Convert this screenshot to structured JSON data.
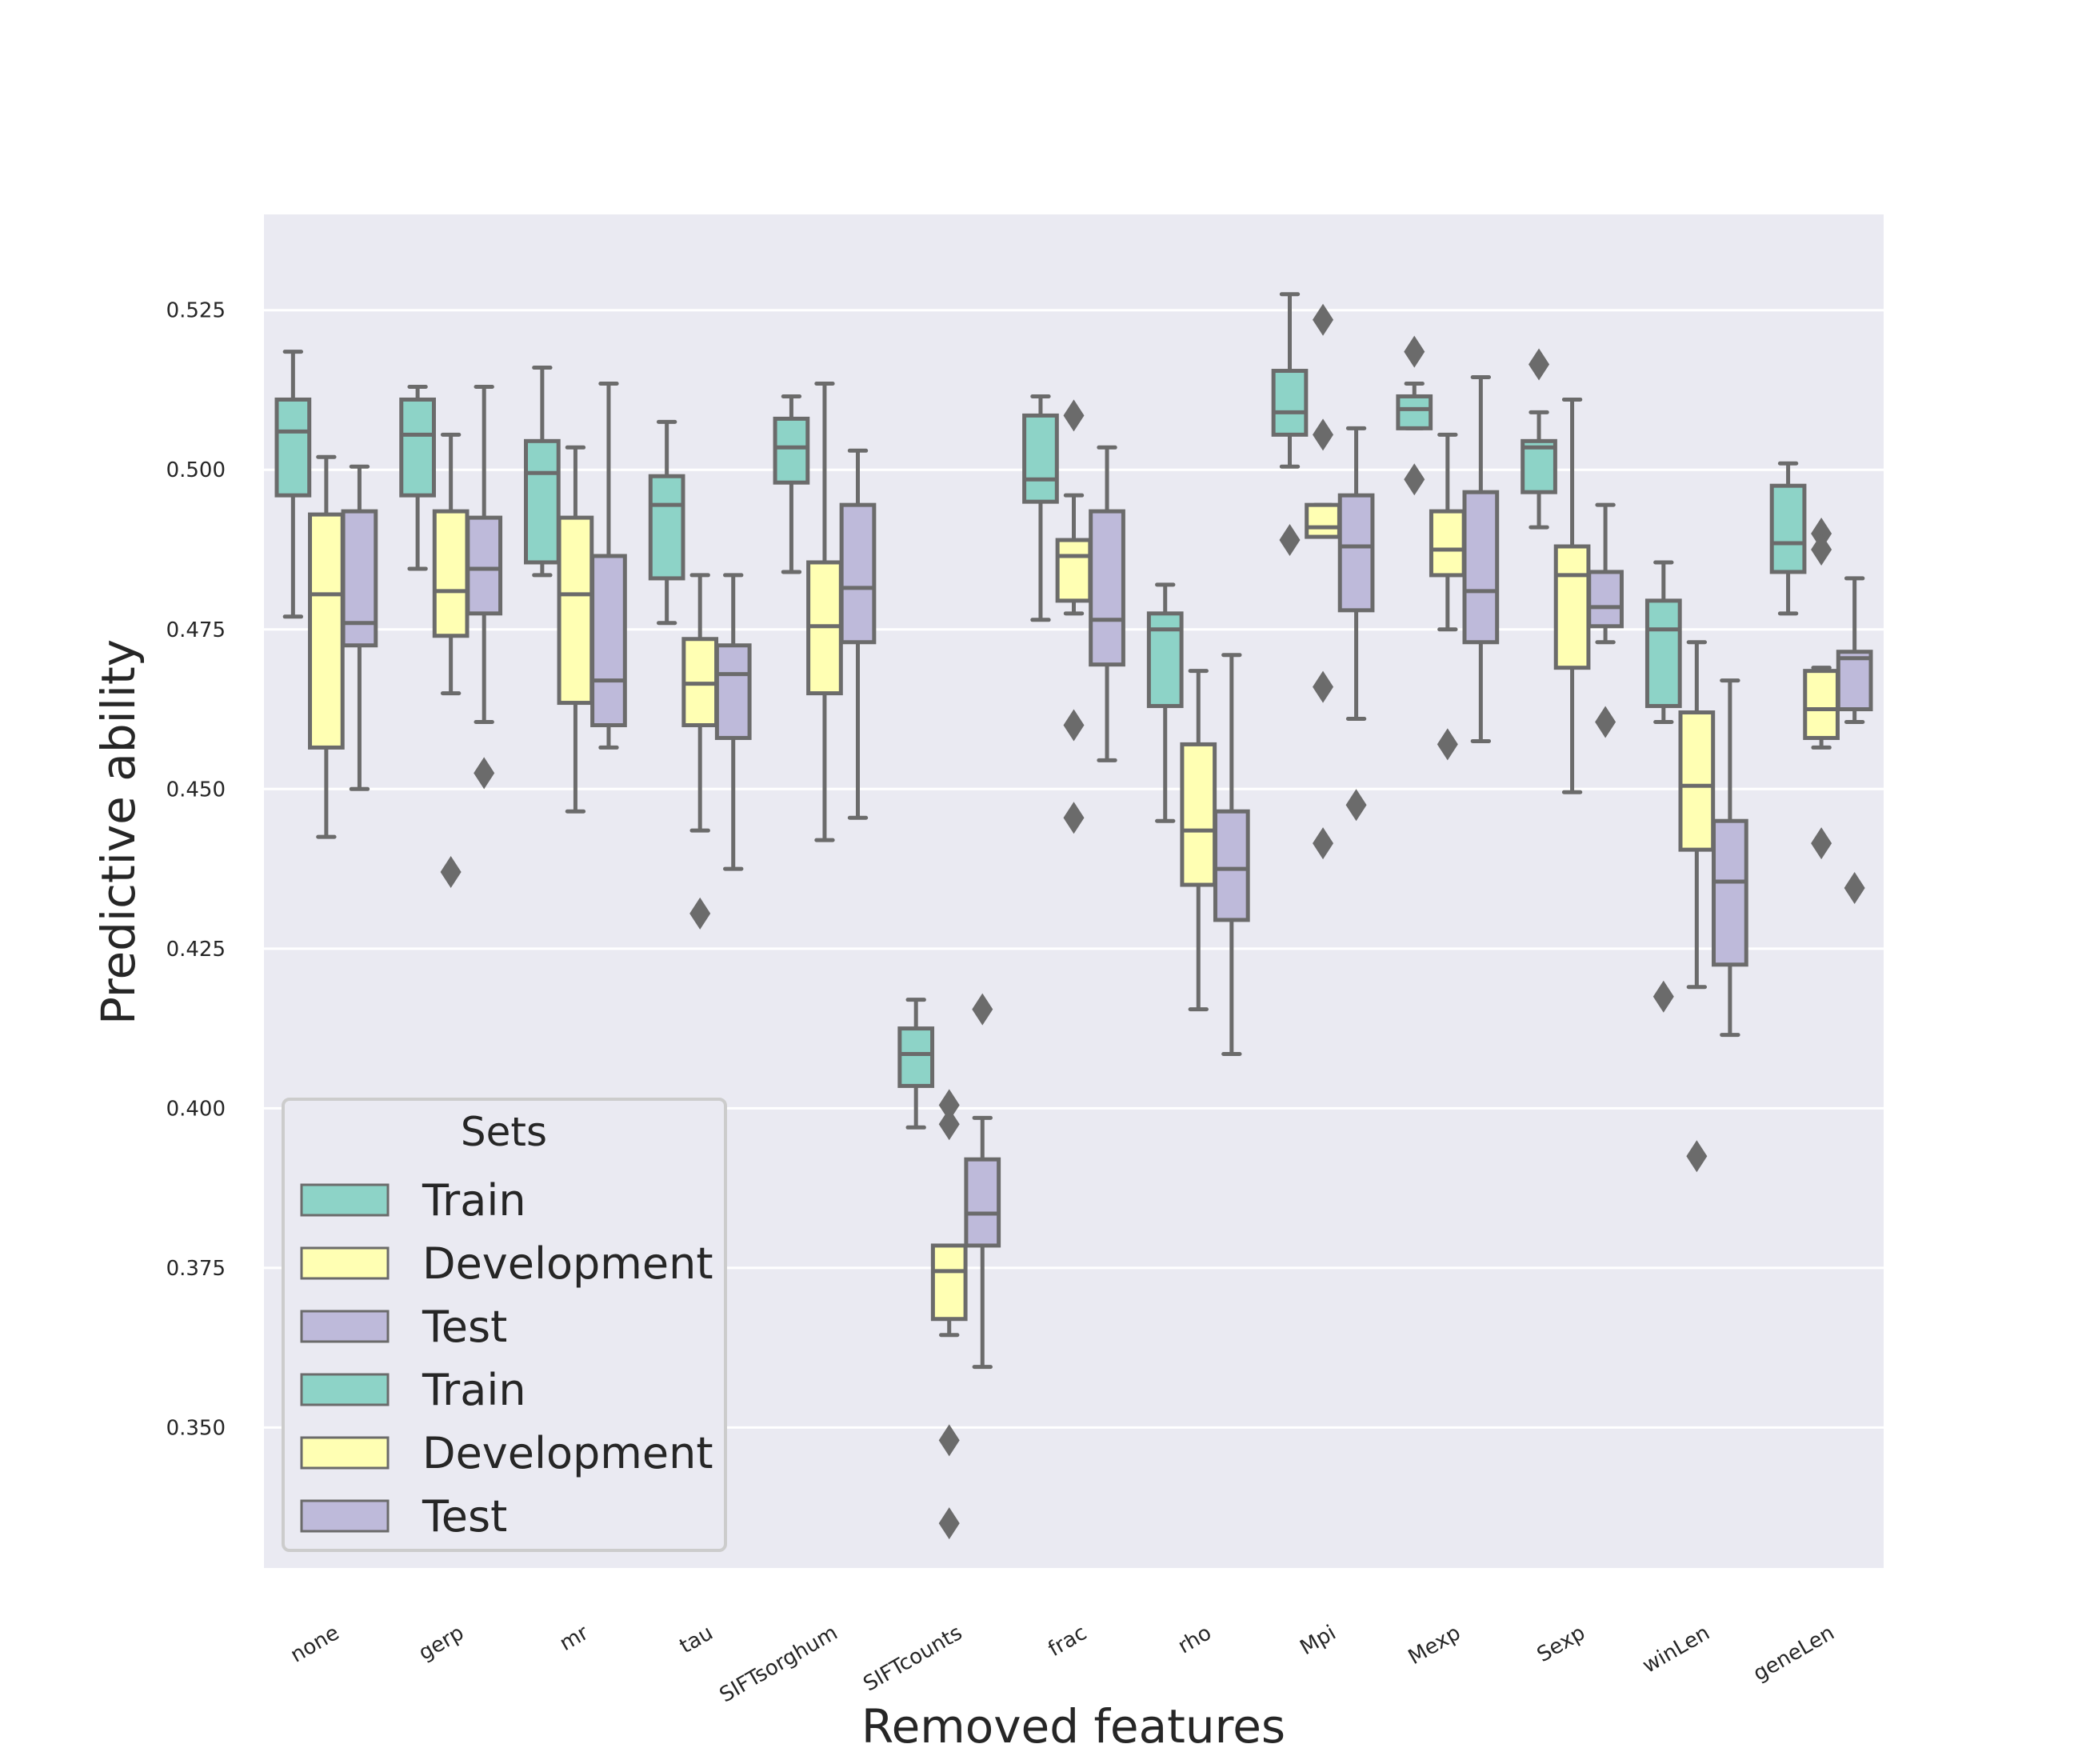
{
  "chart_data": {
    "type": "box",
    "xlabel": "Removed features",
    "ylabel": "Predictive ability",
    "ylim": [
      0.328,
      0.54
    ],
    "yticks": [
      0.35,
      0.375,
      0.4,
      0.425,
      0.45,
      0.475,
      0.5,
      0.525
    ],
    "ytick_labels": [
      "0.350",
      "0.375",
      "0.400",
      "0.425",
      "0.450",
      "0.475",
      "0.500",
      "0.525"
    ],
    "grid": true,
    "legend_position": "lower-left",
    "categories": [
      "none",
      "gerp",
      "mr",
      "tau",
      "SIFTsorghum",
      "SIFTcounts",
      "frac",
      "rho",
      "Mpi",
      "Mexp",
      "Sexp",
      "winLen",
      "geneLen"
    ],
    "legend": {
      "title": "Sets",
      "entries": [
        {
          "label": "Train",
          "color": "#8dd3c7"
        },
        {
          "label": "Development",
          "color": "#ffffb3"
        },
        {
          "label": "Test",
          "color": "#bebada"
        },
        {
          "label": "Train",
          "color": "#8dd3c7"
        },
        {
          "label": "Development",
          "color": "#ffffb3"
        },
        {
          "label": "Test",
          "color": "#bebada"
        }
      ]
    },
    "series": [
      {
        "name": "Train",
        "color": "#8dd3c7",
        "boxes": [
          {
            "whislo": 0.477,
            "q1": 0.496,
            "med": 0.506,
            "q3": 0.511,
            "whishi": 0.5185,
            "fliers": []
          },
          {
            "whislo": 0.4845,
            "q1": 0.496,
            "med": 0.5055,
            "q3": 0.511,
            "whishi": 0.513,
            "fliers": []
          },
          {
            "whislo": 0.4835,
            "q1": 0.4855,
            "med": 0.4995,
            "q3": 0.5045,
            "whishi": 0.516,
            "fliers": []
          },
          {
            "whislo": 0.476,
            "q1": 0.483,
            "med": 0.4945,
            "q3": 0.499,
            "whishi": 0.5075,
            "fliers": []
          },
          {
            "whislo": 0.484,
            "q1": 0.498,
            "med": 0.5035,
            "q3": 0.508,
            "whishi": 0.5115,
            "fliers": []
          },
          {
            "whislo": 0.397,
            "q1": 0.4035,
            "med": 0.4085,
            "q3": 0.4125,
            "whishi": 0.417,
            "fliers": []
          },
          {
            "whislo": 0.4765,
            "q1": 0.495,
            "med": 0.4985,
            "q3": 0.5085,
            "whishi": 0.5115,
            "fliers": []
          },
          {
            "whislo": 0.445,
            "q1": 0.463,
            "med": 0.475,
            "q3": 0.4775,
            "whishi": 0.482,
            "fliers": []
          },
          {
            "whislo": 0.5005,
            "q1": 0.5055,
            "med": 0.509,
            "q3": 0.5155,
            "whishi": 0.5275,
            "fliers": [
              0.489
            ]
          },
          {
            "whislo": 0.5065,
            "q1": 0.5065,
            "med": 0.5095,
            "q3": 0.5115,
            "whishi": 0.5135,
            "fliers": [
              0.5185,
              0.4985
            ]
          },
          {
            "whislo": 0.491,
            "q1": 0.4965,
            "med": 0.5035,
            "q3": 0.5045,
            "whishi": 0.509,
            "fliers": [
              0.5165
            ]
          },
          {
            "whislo": 0.4605,
            "q1": 0.463,
            "med": 0.475,
            "q3": 0.4795,
            "whishi": 0.4855,
            "fliers": [
              0.4175
            ]
          },
          {
            "whislo": 0.4775,
            "q1": 0.484,
            "med": 0.4885,
            "q3": 0.4975,
            "whishi": 0.501,
            "fliers": []
          }
        ]
      },
      {
        "name": "Development",
        "color": "#ffffb3",
        "boxes": [
          {
            "whislo": 0.4425,
            "q1": 0.4565,
            "med": 0.4805,
            "q3": 0.493,
            "whishi": 0.502,
            "fliers": []
          },
          {
            "whislo": 0.465,
            "q1": 0.474,
            "med": 0.481,
            "q3": 0.4935,
            "whishi": 0.5055,
            "fliers": [
              0.437
            ]
          },
          {
            "whislo": 0.4465,
            "q1": 0.4635,
            "med": 0.4805,
            "q3": 0.4925,
            "whishi": 0.5035,
            "fliers": []
          },
          {
            "whislo": 0.4435,
            "q1": 0.46,
            "med": 0.4665,
            "q3": 0.4735,
            "whishi": 0.4835,
            "fliers": [
              0.4305
            ]
          },
          {
            "whislo": 0.442,
            "q1": 0.465,
            "med": 0.4755,
            "q3": 0.4855,
            "whishi": 0.5135,
            "fliers": []
          },
          {
            "whislo": 0.3645,
            "q1": 0.367,
            "med": 0.3745,
            "q3": 0.3785,
            "whishi": 0.3785,
            "fliers": [
              0.4005,
              0.3975,
              0.348,
              0.335
            ]
          },
          {
            "whislo": 0.4775,
            "q1": 0.4795,
            "med": 0.4865,
            "q3": 0.489,
            "whishi": 0.496,
            "fliers": [
              0.5085,
              0.46,
              0.4455
            ]
          },
          {
            "whislo": 0.4155,
            "q1": 0.435,
            "med": 0.4435,
            "q3": 0.457,
            "whishi": 0.4685,
            "fliers": []
          },
          {
            "whislo": 0.4895,
            "q1": 0.4895,
            "med": 0.491,
            "q3": 0.4945,
            "whishi": 0.4945,
            "fliers": [
              0.5235,
              0.5055,
              0.466,
              0.4415
            ]
          },
          {
            "whislo": 0.475,
            "q1": 0.4835,
            "med": 0.4875,
            "q3": 0.4935,
            "whishi": 0.5055,
            "fliers": [
              0.457
            ]
          },
          {
            "whislo": 0.4495,
            "q1": 0.469,
            "med": 0.4835,
            "q3": 0.488,
            "whishi": 0.511,
            "fliers": []
          },
          {
            "whislo": 0.419,
            "q1": 0.4405,
            "med": 0.4505,
            "q3": 0.462,
            "whishi": 0.473,
            "fliers": [
              0.3925
            ]
          },
          {
            "whislo": 0.4565,
            "q1": 0.458,
            "med": 0.4625,
            "q3": 0.4685,
            "whishi": 0.469,
            "fliers": [
              0.49,
              0.4875,
              0.4415
            ]
          }
        ]
      },
      {
        "name": "Test",
        "color": "#bebada",
        "boxes": [
          {
            "whislo": 0.45,
            "q1": 0.4725,
            "med": 0.476,
            "q3": 0.4935,
            "whishi": 0.5005,
            "fliers": []
          },
          {
            "whislo": 0.4605,
            "q1": 0.4775,
            "med": 0.4845,
            "q3": 0.4925,
            "whishi": 0.513,
            "fliers": [
              0.4525
            ]
          },
          {
            "whislo": 0.4565,
            "q1": 0.46,
            "med": 0.467,
            "q3": 0.4865,
            "whishi": 0.5135,
            "fliers": []
          },
          {
            "whislo": 0.4375,
            "q1": 0.458,
            "med": 0.468,
            "q3": 0.4725,
            "whishi": 0.4835,
            "fliers": []
          },
          {
            "whislo": 0.4455,
            "q1": 0.473,
            "med": 0.4815,
            "q3": 0.4945,
            "whishi": 0.503,
            "fliers": []
          },
          {
            "whislo": 0.3595,
            "q1": 0.3785,
            "med": 0.3835,
            "q3": 0.392,
            "whishi": 0.3985,
            "fliers": [
              0.4155
            ]
          },
          {
            "whislo": 0.4545,
            "q1": 0.4695,
            "med": 0.4765,
            "q3": 0.4935,
            "whishi": 0.5035,
            "fliers": []
          },
          {
            "whislo": 0.4085,
            "q1": 0.4295,
            "med": 0.4375,
            "q3": 0.4465,
            "whishi": 0.471,
            "fliers": []
          },
          {
            "whislo": 0.461,
            "q1": 0.478,
            "med": 0.488,
            "q3": 0.496,
            "whishi": 0.5065,
            "fliers": [
              0.4475
            ]
          },
          {
            "whislo": 0.4575,
            "q1": 0.473,
            "med": 0.481,
            "q3": 0.4965,
            "whishi": 0.5145,
            "fliers": []
          },
          {
            "whislo": 0.473,
            "q1": 0.4755,
            "med": 0.4785,
            "q3": 0.484,
            "whishi": 0.4945,
            "fliers": [
              0.4605
            ]
          },
          {
            "whislo": 0.4115,
            "q1": 0.4225,
            "med": 0.4355,
            "q3": 0.445,
            "whishi": 0.467,
            "fliers": []
          },
          {
            "whislo": 0.4605,
            "q1": 0.4625,
            "med": 0.4705,
            "q3": 0.4715,
            "whishi": 0.483,
            "fliers": [
              0.4345
            ]
          }
        ]
      }
    ]
  },
  "theme": {
    "plot_background": "#eaeaf2",
    "grid_color": "#ffffff",
    "line_color": "#6b6b6b",
    "text_color": "#262626"
  }
}
